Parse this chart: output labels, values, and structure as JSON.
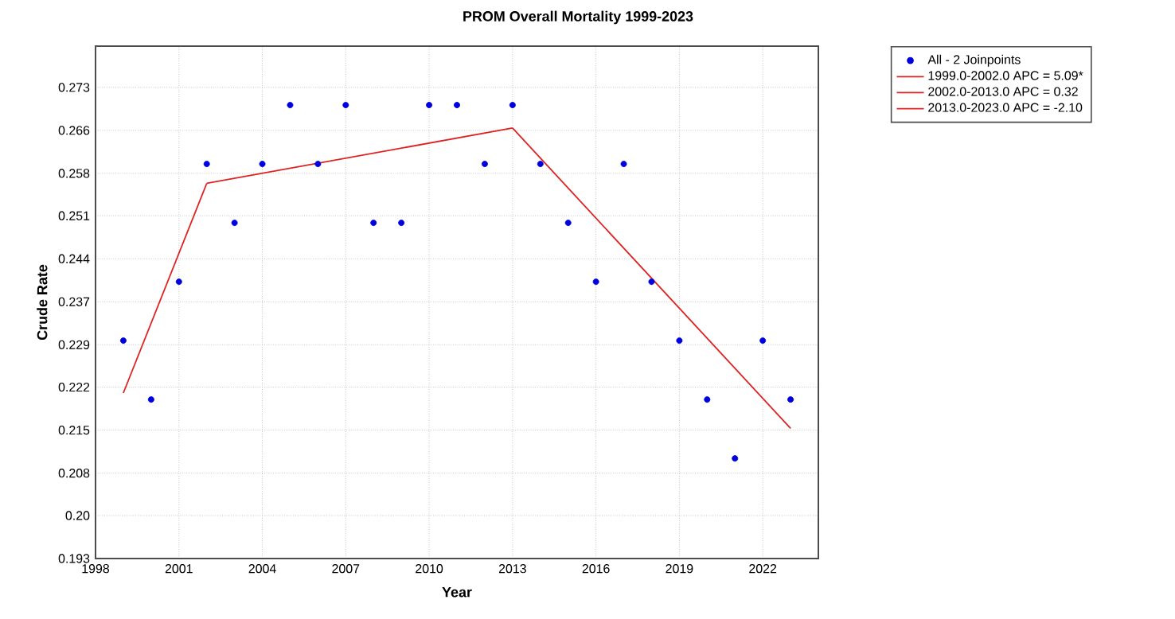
{
  "chart_data": {
    "type": "scatter",
    "title": "PROM Overall Mortality 1999-2023",
    "xlabel": "Year",
    "ylabel": "Crude Rate",
    "xlim": [
      1998,
      2024
    ],
    "xticks": [
      1998,
      2001,
      2004,
      2007,
      2010,
      2013,
      2016,
      2019,
      2022
    ],
    "ylim": [
      0.193,
      0.28
    ],
    "yticks": [
      {
        "value": 0.193,
        "label": "0.193"
      },
      {
        "value": 0.2003,
        "label": "0.20"
      },
      {
        "value": 0.2075,
        "label": "0.208"
      },
      {
        "value": 0.2148,
        "label": "0.215"
      },
      {
        "value": 0.2221,
        "label": "0.222"
      },
      {
        "value": 0.2293,
        "label": "0.229"
      },
      {
        "value": 0.2366,
        "label": "0.237"
      },
      {
        "value": 0.2439,
        "label": "0.244"
      },
      {
        "value": 0.2512,
        "label": "0.251"
      },
      {
        "value": 0.2584,
        "label": "0.258"
      },
      {
        "value": 0.2657,
        "label": "0.266"
      },
      {
        "value": 0.273,
        "label": "0.273"
      }
    ],
    "grid": true,
    "legend": "top right",
    "series": [
      {
        "name": "All - 2 Joinpoints",
        "marker": "circle",
        "color": "#0000dd",
        "x": [
          1999,
          2000,
          2001,
          2002,
          2003,
          2004,
          2005,
          2006,
          2007,
          2008,
          2009,
          2010,
          2011,
          2012,
          2013,
          2014,
          2015,
          2016,
          2017,
          2018,
          2019,
          2020,
          2021,
          2022,
          2023
        ],
        "values": [
          0.23,
          0.22,
          0.24,
          0.26,
          0.25,
          0.26,
          0.27,
          0.26,
          0.27,
          0.25,
          0.25,
          0.27,
          0.27,
          0.26,
          0.27,
          0.26,
          0.25,
          0.24,
          0.26,
          0.24,
          0.23,
          0.22,
          0.21,
          0.23,
          0.22
        ]
      },
      {
        "name": "1999.0-2002.0 APC = 5.09*",
        "type": "line",
        "marker": "none",
        "color": "#dd2222",
        "x": [
          1999,
          2002
        ],
        "values": [
          0.2211,
          0.2567
        ]
      },
      {
        "name": "2002.0-2013.0 APC = 0.32",
        "type": "line",
        "marker": "none",
        "color": "#dd2222",
        "x": [
          2002,
          2013
        ],
        "values": [
          0.2567,
          0.2661
        ]
      },
      {
        "name": "2013.0-2023.0 APC = -2.10",
        "type": "line",
        "marker": "none",
        "color": "#dd2222",
        "x": [
          2013,
          2023
        ],
        "values": [
          0.2661,
          0.2151
        ]
      }
    ]
  }
}
